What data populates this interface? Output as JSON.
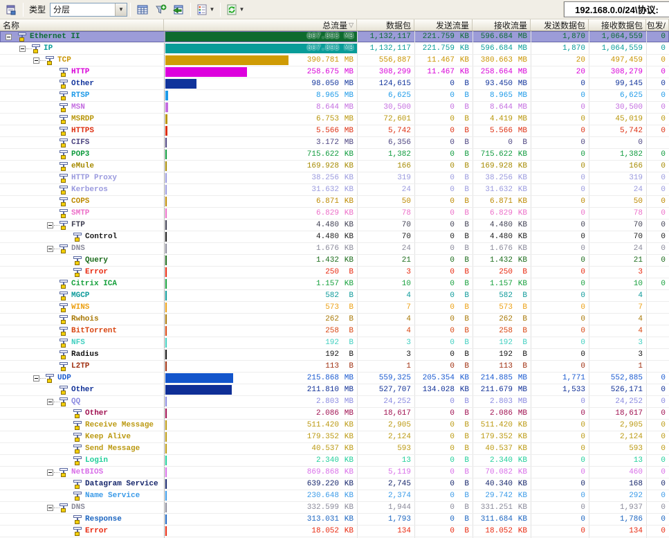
{
  "toolbar": {
    "type_label": "类型",
    "type_value": "分层",
    "address": "192.168.0.0/24\\协议:"
  },
  "columns": [
    {
      "label": "名称"
    },
    {
      "label": "总流量"
    },
    {
      "label": "数据包"
    },
    {
      "label": "发送流量"
    },
    {
      "label": "接收流量"
    },
    {
      "label": "发送数据包"
    },
    {
      "label": "接收数据包"
    },
    {
      "label": "包发/"
    }
  ],
  "sort_column": "总流量",
  "bar_scale_max_mb": 607.893,
  "chart_color_note": "per-row color applies to protocol name text, bar and all numeric cells",
  "rows": [
    {
      "name": "Ethernet II",
      "level": 0,
      "expand": true,
      "selected": true,
      "color": "#0b6b33",
      "bar_color": "#0e6b2e",
      "bar_pct": 100,
      "total": "607.893 MB",
      "packets": "1,132,117",
      "sent": "221.759 KB",
      "recv": "596.684 MB",
      "sent_pkts": "1,870",
      "recv_pkts": "1,064,559",
      "last": "0"
    },
    {
      "name": "IP",
      "level": 1,
      "expand": true,
      "color": "#089c98",
      "bar_color": "#089c98",
      "bar_pct": 100,
      "total": "607.893 MB",
      "packets": "1,132,117",
      "sent": "221.759 KB",
      "recv": "596.684 MB",
      "sent_pkts": "1,870",
      "recv_pkts": "1,064,559",
      "last": "0"
    },
    {
      "name": "TCP",
      "level": 2,
      "expand": true,
      "color": "#c99400",
      "bar_color": "#cf9b05",
      "bar_pct": 64.3,
      "total": "390.781 MB",
      "packets": "556,887",
      "sent": "11.467 KB",
      "recv": "380.663 MB",
      "sent_pkts": "20",
      "recv_pkts": "497,459",
      "last": "0"
    },
    {
      "name": "HTTP",
      "level": 3,
      "color": "#d800d8",
      "bar_color": "#dd00dd",
      "bar_pct": 42.6,
      "total": "258.675 MB",
      "packets": "308,299",
      "sent": "11.467 KB",
      "recv": "258.664 MB",
      "sent_pkts": "20",
      "recv_pkts": "308,279",
      "last": "0"
    },
    {
      "name": "Other",
      "level": 3,
      "color": "#10339b",
      "bar_color": "#10339b",
      "bar_pct": 16.1,
      "total": "98.050 MB",
      "packets": "124,615",
      "sent": "0 B",
      "recv": "93.450 MB",
      "sent_pkts": "0",
      "recv_pkts": "99,145",
      "last": "0"
    },
    {
      "name": "RTSP",
      "level": 3,
      "color": "#1e9ae8",
      "bar_color": "#1e9ae8",
      "bar_pct": 1.47,
      "total": "8.965 MB",
      "packets": "6,625",
      "sent": "0 B",
      "recv": "8.965 MB",
      "sent_pkts": "0",
      "recv_pkts": "6,625",
      "last": "0"
    },
    {
      "name": "MSN",
      "level": 3,
      "color": "#c46ee0",
      "bar_color": "#c46ee0",
      "bar_pct": 1.42,
      "total": "8.644 MB",
      "packets": "30,500",
      "sent": "0 B",
      "recv": "8.644 MB",
      "sent_pkts": "0",
      "recv_pkts": "30,500",
      "last": "0"
    },
    {
      "name": "MSRDP",
      "level": 3,
      "color": "#b8960a",
      "bar_color": "#b8960a",
      "bar_pct": 1.11,
      "total": "6.753 MB",
      "packets": "72,601",
      "sent": "0 B",
      "recv": "4.419 MB",
      "sent_pkts": "0",
      "recv_pkts": "45,019",
      "last": "0"
    },
    {
      "name": "HTTPS",
      "level": 3,
      "color": "#dd2e10",
      "bar_color": "#dd2e10",
      "bar_pct": 0.92,
      "total": "5.566 MB",
      "packets": "5,742",
      "sent": "0 B",
      "recv": "5.566 MB",
      "sent_pkts": "0",
      "recv_pkts": "5,742",
      "last": "0"
    },
    {
      "name": "CIFS",
      "level": 3,
      "color": "#4c4480",
      "bar_color": "#4c4480",
      "bar_pct": 0.52,
      "total": "3.172 MB",
      "packets": "6,356",
      "sent": "0 B",
      "recv": "0 B",
      "sent_pkts": "0",
      "recv_pkts": "0",
      "last": ""
    },
    {
      "name": "POP3",
      "level": 3,
      "color": "#0d9a3c",
      "bar_color": "#0d9a3c",
      "bar_pct": 0.12,
      "total": "715.622 KB",
      "packets": "1,382",
      "sent": "0 B",
      "recv": "715.622 KB",
      "sent_pkts": "0",
      "recv_pkts": "1,382",
      "last": "0"
    },
    {
      "name": "eMule",
      "level": 3,
      "color": "#a68a00",
      "bar_color": "#a68a00",
      "bar_pct": 0.03,
      "total": "169.928 KB",
      "packets": "166",
      "sent": "0 B",
      "recv": "169.928 KB",
      "sent_pkts": "0",
      "recv_pkts": "166",
      "last": "0"
    },
    {
      "name": "HTTP Proxy",
      "level": 3,
      "color": "#9a9ade",
      "bar_color": "#9a9ade",
      "bar_pct": 0.01,
      "total": "38.256 KB",
      "packets": "319",
      "sent": "0 B",
      "recv": "38.256 KB",
      "sent_pkts": "0",
      "recv_pkts": "319",
      "last": "0"
    },
    {
      "name": "Kerberos",
      "level": 3,
      "color": "#9a9ade",
      "bar_color": "#9a9ade",
      "bar_pct": 0.01,
      "total": "31.632 KB",
      "packets": "24",
      "sent": "0 B",
      "recv": "31.632 KB",
      "sent_pkts": "0",
      "recv_pkts": "24",
      "last": "0"
    },
    {
      "name": "COPS",
      "level": 3,
      "color": "#bd8a00",
      "bar_color": "#bd8a00",
      "bar_pct": 0.01,
      "total": "6.871 KB",
      "packets": "50",
      "sent": "0 B",
      "recv": "6.871 KB",
      "sent_pkts": "0",
      "recv_pkts": "50",
      "last": "0"
    },
    {
      "name": "SMTP",
      "level": 3,
      "color": "#ec6ec8",
      "bar_color": "#ec6ec8",
      "bar_pct": 0.01,
      "total": "6.829 KB",
      "packets": "78",
      "sent": "0 B",
      "recv": "6.829 KB",
      "sent_pkts": "0",
      "recv_pkts": "78",
      "last": "0"
    },
    {
      "name": "FTP",
      "level": 3,
      "expand": true,
      "color": "#3f3f52",
      "bar_color": "#3f3f52",
      "bar_pct": 0.01,
      "total": "4.480 KB",
      "packets": "70",
      "sent": "0 B",
      "recv": "4.480 KB",
      "sent_pkts": "0",
      "recv_pkts": "70",
      "last": "0"
    },
    {
      "name": "Control",
      "level": 4,
      "color": "#1a1a1a",
      "bar_color": "#1a1a1a",
      "bar_pct": 0.01,
      "total": "4.480 KB",
      "packets": "70",
      "sent": "0 B",
      "recv": "4.480 KB",
      "sent_pkts": "0",
      "recv_pkts": "70",
      "last": "0"
    },
    {
      "name": "DNS",
      "level": 3,
      "expand": true,
      "color": "#8a8a9a",
      "bar_color": "#8a8a9a",
      "bar_pct": 0.01,
      "total": "1.676 KB",
      "packets": "24",
      "sent": "0 B",
      "recv": "1.676 KB",
      "sent_pkts": "0",
      "recv_pkts": "24",
      "last": "0"
    },
    {
      "name": "Query",
      "level": 4,
      "color": "#1a6b1a",
      "bar_color": "#1a6b1a",
      "bar_pct": 0.01,
      "total": "1.432 KB",
      "packets": "21",
      "sent": "0 B",
      "recv": "1.432 KB",
      "sent_pkts": "0",
      "recv_pkts": "21",
      "last": "0"
    },
    {
      "name": "Error",
      "level": 4,
      "color": "#e8280e",
      "bar_color": "#e8280e",
      "bar_pct": 0.01,
      "total": "250 B",
      "packets": "3",
      "sent": "0 B",
      "recv": "250 B",
      "sent_pkts": "0",
      "recv_pkts": "3",
      "last": ""
    },
    {
      "name": "Citrix ICA",
      "level": 3,
      "color": "#16a03c",
      "bar_color": "#16a03c",
      "bar_pct": 0.01,
      "total": "1.157 KB",
      "packets": "10",
      "sent": "0 B",
      "recv": "1.157 KB",
      "sent_pkts": "0",
      "recv_pkts": "10",
      "last": "0"
    },
    {
      "name": "MGCP",
      "level": 3,
      "color": "#0d9a9a",
      "bar_color": "#0d9a9a",
      "bar_pct": 0.01,
      "total": "582 B",
      "packets": "4",
      "sent": "0 B",
      "recv": "582 B",
      "sent_pkts": "0",
      "recv_pkts": "4",
      "last": ""
    },
    {
      "name": "WINS",
      "level": 3,
      "color": "#eca014",
      "bar_color": "#eca014",
      "bar_pct": 0.01,
      "total": "573 B",
      "packets": "7",
      "sent": "0 B",
      "recv": "573 B",
      "sent_pkts": "0",
      "recv_pkts": "7",
      "last": ""
    },
    {
      "name": "Rwhois",
      "level": 3,
      "color": "#a87806",
      "bar_color": "#a87806",
      "bar_pct": 0.01,
      "total": "262 B",
      "packets": "4",
      "sent": "0 B",
      "recv": "262 B",
      "sent_pkts": "0",
      "recv_pkts": "4",
      "last": ""
    },
    {
      "name": "BitTorrent",
      "level": 3,
      "color": "#d84410",
      "bar_color": "#d84410",
      "bar_pct": 0.01,
      "total": "258 B",
      "packets": "4",
      "sent": "0 B",
      "recv": "258 B",
      "sent_pkts": "0",
      "recv_pkts": "4",
      "last": ""
    },
    {
      "name": "NFS",
      "level": 3,
      "color": "#40cfc0",
      "bar_color": "#40cfc0",
      "bar_pct": 0.01,
      "total": "192 B",
      "packets": "3",
      "sent": "0 B",
      "recv": "192 B",
      "sent_pkts": "0",
      "recv_pkts": "3",
      "last": ""
    },
    {
      "name": "Radius",
      "level": 3,
      "color": "#111111",
      "bar_color": "#111111",
      "bar_pct": 0.01,
      "total": "192 B",
      "packets": "3",
      "sent": "0 B",
      "recv": "192 B",
      "sent_pkts": "0",
      "recv_pkts": "3",
      "last": ""
    },
    {
      "name": "L2TP",
      "level": 3,
      "color": "#a03010",
      "bar_color": "#a03010",
      "bar_pct": 0.01,
      "total": "113 B",
      "packets": "1",
      "sent": "0 B",
      "recv": "113 B",
      "sent_pkts": "0",
      "recv_pkts": "1",
      "last": ""
    },
    {
      "name": "UDP",
      "level": 2,
      "expand": true,
      "color": "#1a5ad0",
      "bar_color": "#1355cb",
      "bar_pct": 35.5,
      "total": "215.868 MB",
      "packets": "559,325",
      "sent": "205.354 KB",
      "recv": "214.885 MB",
      "sent_pkts": "1,771",
      "recv_pkts": "552,885",
      "last": "0"
    },
    {
      "name": "Other",
      "level": 3,
      "color": "#0f2f96",
      "bar_color": "#0f2f96",
      "bar_pct": 34.8,
      "total": "211.810 MB",
      "packets": "527,707",
      "sent": "134.028 KB",
      "recv": "211.679 MB",
      "sent_pkts": "1,533",
      "recv_pkts": "526,171",
      "last": "0"
    },
    {
      "name": "QQ",
      "level": 3,
      "expand": true,
      "color": "#8a8ae0",
      "bar_color": "#8a8ae0",
      "bar_pct": 0.46,
      "total": "2.803 MB",
      "packets": "24,252",
      "sent": "0 B",
      "recv": "2.803 MB",
      "sent_pkts": "0",
      "recv_pkts": "24,252",
      "last": "0"
    },
    {
      "name": "Other",
      "level": 4,
      "color": "#a01050",
      "bar_color": "#a01050",
      "bar_pct": 0.34,
      "total": "2.086 MB",
      "packets": "18,617",
      "sent": "0 B",
      "recv": "2.086 MB",
      "sent_pkts": "0",
      "recv_pkts": "18,617",
      "last": "0"
    },
    {
      "name": "Receive Message",
      "level": 4,
      "color": "#bb9911",
      "bar_color": "#bb9911",
      "bar_pct": 0.08,
      "total": "511.420 KB",
      "packets": "2,905",
      "sent": "0 B",
      "recv": "511.420 KB",
      "sent_pkts": "0",
      "recv_pkts": "2,905",
      "last": "0"
    },
    {
      "name": "Keep Alive",
      "level": 4,
      "color": "#bb9911",
      "bar_color": "#bb9911",
      "bar_pct": 0.03,
      "total": "179.352 KB",
      "packets": "2,124",
      "sent": "0 B",
      "recv": "179.352 KB",
      "sent_pkts": "0",
      "recv_pkts": "2,124",
      "last": "0"
    },
    {
      "name": "Send Message",
      "level": 4,
      "color": "#bb9911",
      "bar_color": "#bb9911",
      "bar_pct": 0.01,
      "total": "40.537 KB",
      "packets": "593",
      "sent": "0 B",
      "recv": "40.537 KB",
      "sent_pkts": "0",
      "recv_pkts": "593",
      "last": "0"
    },
    {
      "name": "Login",
      "level": 4,
      "color": "#20cf9a",
      "bar_color": "#20cf9a",
      "bar_pct": 0.01,
      "total": "2.340 KB",
      "packets": "13",
      "sent": "0 B",
      "recv": "2.340 KB",
      "sent_pkts": "0",
      "recv_pkts": "13",
      "last": "0"
    },
    {
      "name": "NetBIOS",
      "level": 3,
      "expand": true,
      "color": "#d86ee8",
      "bar_color": "#d86ee8",
      "bar_pct": 0.14,
      "total": "869.868 KB",
      "packets": "5,119",
      "sent": "0 B",
      "recv": "70.082 KB",
      "sent_pkts": "0",
      "recv_pkts": "460",
      "last": "0"
    },
    {
      "name": "Datagram Service",
      "level": 4,
      "color": "#14246a",
      "bar_color": "#14246a",
      "bar_pct": 0.1,
      "total": "639.220 KB",
      "packets": "2,745",
      "sent": "0 B",
      "recv": "40.340 KB",
      "sent_pkts": "0",
      "recv_pkts": "168",
      "last": "0"
    },
    {
      "name": "Name Service",
      "level": 4,
      "color": "#3a9ae8",
      "bar_color": "#3a9ae8",
      "bar_pct": 0.04,
      "total": "230.648 KB",
      "packets": "2,374",
      "sent": "0 B",
      "recv": "29.742 KB",
      "sent_pkts": "0",
      "recv_pkts": "292",
      "last": "0"
    },
    {
      "name": "DNS",
      "level": 3,
      "expand": true,
      "color": "#8a8a9a",
      "bar_color": "#8a8a9a",
      "bar_pct": 0.05,
      "total": "332.599 KB",
      "packets": "1,944",
      "sent": "0 B",
      "recv": "331.251 KB",
      "sent_pkts": "0",
      "recv_pkts": "1,937",
      "last": "0"
    },
    {
      "name": "Response",
      "level": 4,
      "color": "#1a64c0",
      "bar_color": "#1a64c0",
      "bar_pct": 0.05,
      "total": "313.031 KB",
      "packets": "1,793",
      "sent": "0 B",
      "recv": "311.684 KB",
      "sent_pkts": "0",
      "recv_pkts": "1,786",
      "last": "0"
    },
    {
      "name": "Error",
      "level": 4,
      "color": "#e8280e",
      "bar_color": "#e8280e",
      "bar_pct": 0.01,
      "total": "18.052 KB",
      "packets": "134",
      "sent": "0 B",
      "recv": "18.052 KB",
      "sent_pkts": "0",
      "recv_pkts": "134",
      "last": "0"
    },
    {
      "name": "",
      "level": 4,
      "partial": true,
      "color": "#1a64c0",
      "bar_color": "#1a64c0",
      "bar_pct": 0.01,
      "total": "",
      "packets": "",
      "sent": "",
      "recv": "",
      "sent_pkts": "",
      "recv_pkts": "",
      "last": ""
    }
  ]
}
